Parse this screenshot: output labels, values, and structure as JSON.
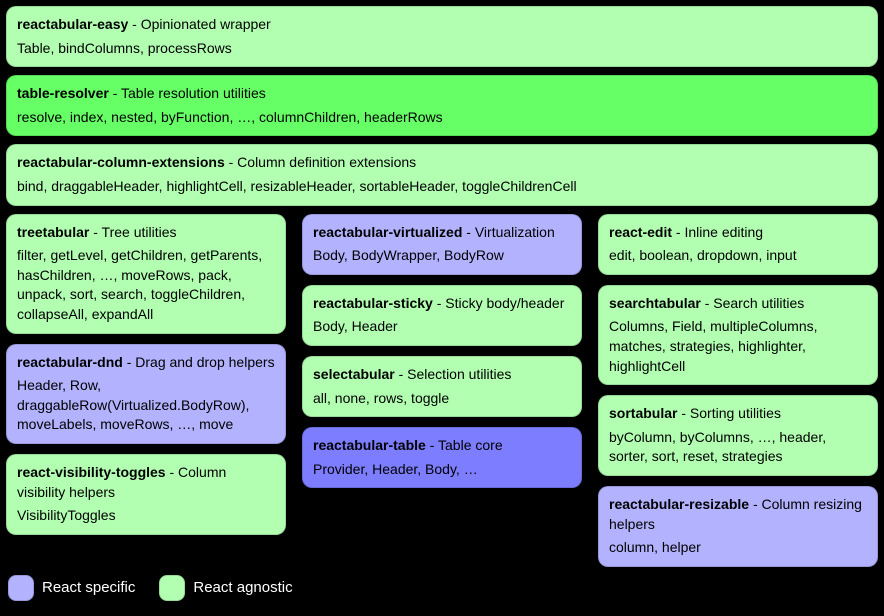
{
  "colors": {
    "react": "#b2b2ff",
    "react_strong": "#7d7dff",
    "agnostic": "#b2ffb2",
    "agnostic_strong": "#66ff66",
    "text": "#000000"
  },
  "legend": {
    "react": "React specific",
    "agnostic": "React agnostic"
  },
  "full": [
    {
      "name": "reactabular-easy",
      "desc": "Opinionated wrapper",
      "exports": "Table, bindColumns, processRows",
      "color": "agnostic"
    },
    {
      "name": "table-resolver",
      "desc": "Table resolution utilities",
      "exports": "resolve, index, nested, byFunction, …, columnChildren, headerRows",
      "color": "agnostic_strong"
    },
    {
      "name": "reactabular-column-extensions",
      "desc": "Column definition extensions",
      "exports": "bind, draggableHeader, highlightCell, resizableHeader, sortableHeader, toggleChildrenCell",
      "color": "agnostic"
    }
  ],
  "columns": [
    [
      {
        "name": "treetabular",
        "desc": "Tree utilities",
        "exports": "filter, getLevel, getChildren, getParents, hasChildren, …, moveRows, pack, unpack, sort, search, toggleChildren, collapseAll, expandAll",
        "color": "agnostic"
      },
      {
        "name": "reactabular-dnd",
        "desc": "Drag and drop helpers",
        "exports": "Header, Row, draggableRow(Virtualized.BodyRow), moveLabels, moveRows, …, move",
        "color": "react"
      },
      {
        "name": "react-visibility-toggles",
        "desc": "Column visibility helpers",
        "exports": "VisibilityToggles",
        "color": "agnostic"
      }
    ],
    [
      {
        "name": "reactabular-virtualized",
        "desc": "Virtualization",
        "exports": "Body, BodyWrapper, BodyRow",
        "color": "react"
      },
      {
        "name": "reactabular-sticky",
        "desc": "Sticky body/header",
        "exports": "Body, Header",
        "color": "agnostic"
      },
      {
        "name": "selectabular",
        "desc": "Selection utilities",
        "exports": "all, none, rows, toggle",
        "color": "agnostic"
      },
      {
        "name": "reactabular-table",
        "desc": "Table core",
        "exports": "Provider, Header, Body, …",
        "color": "react_strong"
      }
    ],
    [
      {
        "name": "react-edit",
        "desc": "Inline editing",
        "exports": "edit, boolean, dropdown, input",
        "color": "agnostic"
      },
      {
        "name": "searchtabular",
        "desc": "Search utilities",
        "exports": "Columns, Field, multipleColumns, matches, strategies, highlighter, highlightCell",
        "color": "agnostic"
      },
      {
        "name": "sortabular",
        "desc": "Sorting utilities",
        "exports": "byColumn, byColumns, …, header, sorter, sort, reset, strategies",
        "color": "agnostic"
      },
      {
        "name": "reactabular-resizable",
        "desc": "Column resizing helpers",
        "exports": "column, helper",
        "color": "react"
      }
    ]
  ]
}
